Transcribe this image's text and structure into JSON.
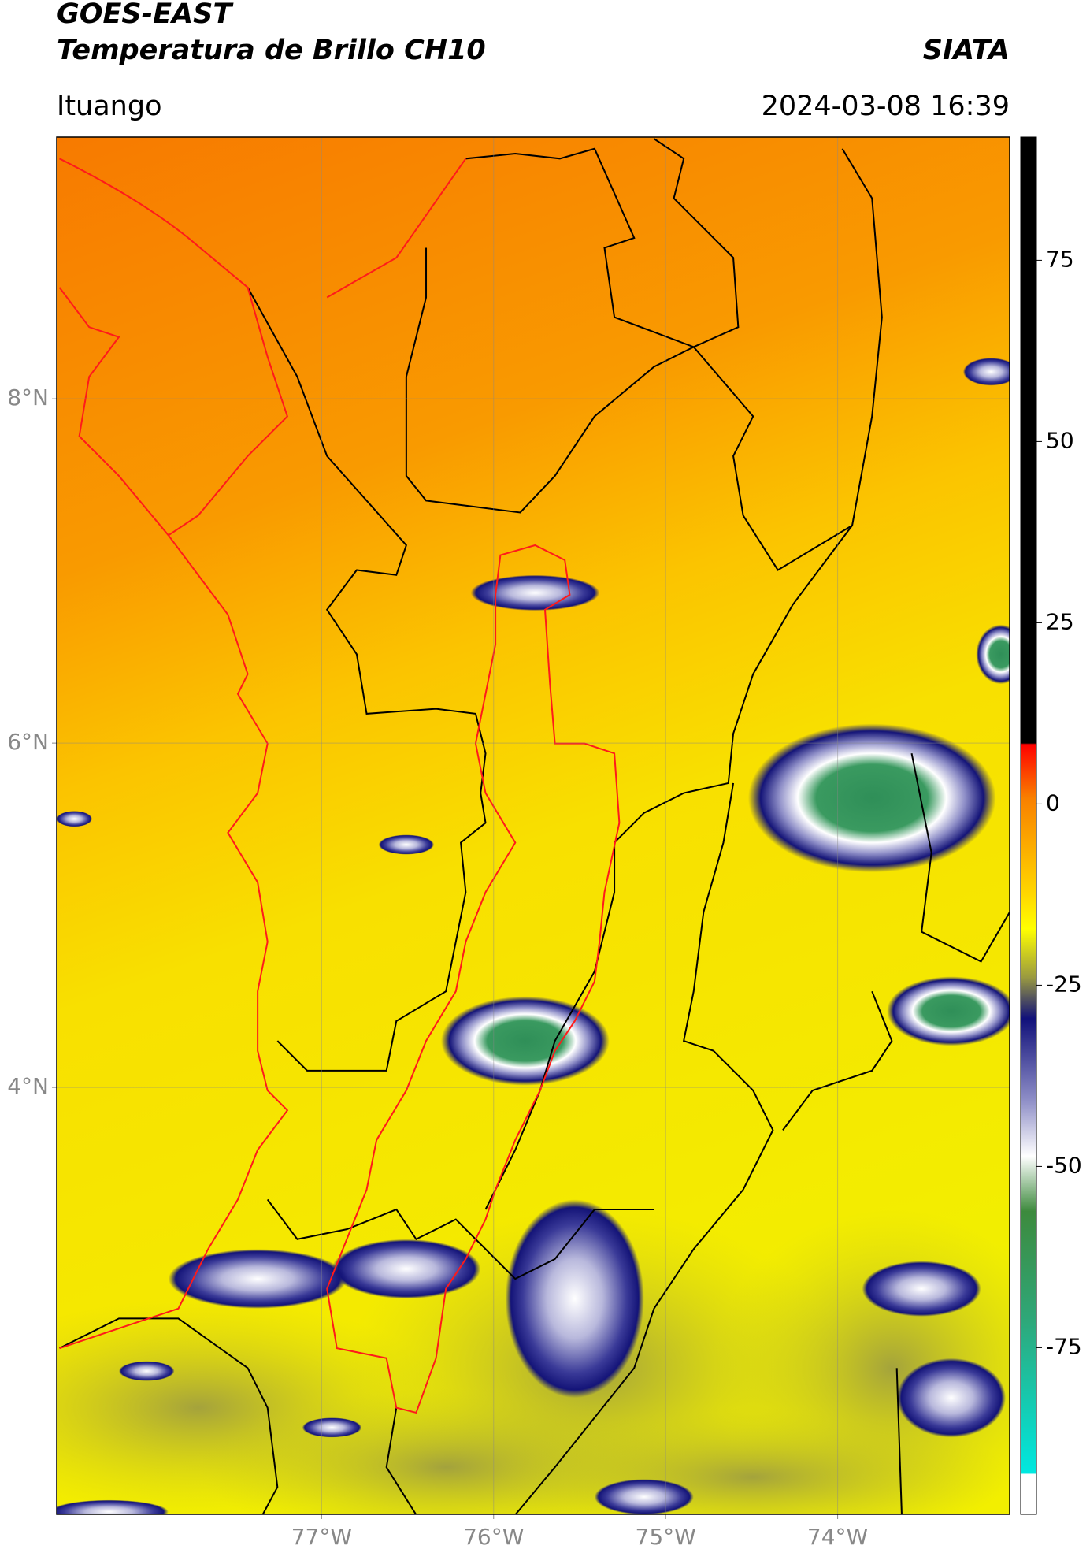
{
  "header": {
    "title": "GOES-EAST",
    "subtitle": "Temperatura de Brillo CH10",
    "source": "SIATA",
    "location": "Ituango",
    "datetime": "2024-03-08 16:39"
  },
  "map": {
    "xlim": [
      -78.54,
      -73.0
    ],
    "ylim": [
      1.52,
      9.52
    ],
    "xticks": [
      {
        "value": -77,
        "label": "77°W"
      },
      {
        "value": -76,
        "label": "76°W"
      },
      {
        "value": -75,
        "label": "75°W"
      },
      {
        "value": -74,
        "label": "74°W"
      }
    ],
    "yticks": [
      {
        "value": 8,
        "label": "8°N"
      },
      {
        "value": 6,
        "label": "6°N"
      },
      {
        "value": 4,
        "label": "4°N"
      }
    ]
  },
  "colorbar": {
    "lim": [
      -98,
      92
    ],
    "ticks": [
      75,
      50,
      25,
      0,
      -25,
      -50,
      -75
    ]
  }
}
